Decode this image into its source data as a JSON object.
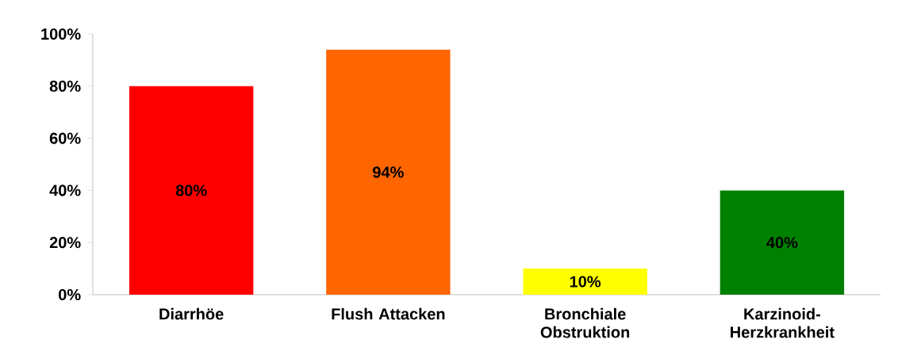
{
  "chart_data": {
    "type": "bar",
    "categories": [
      "Diarrhöe",
      "Flush Attacken",
      "Bronchiale Obstruktion",
      "Karzinoid-Herzkrankheit"
    ],
    "values": [
      80,
      94,
      10,
      40
    ],
    "colors": [
      "#ff0000",
      "#ff6600",
      "#ffff00",
      "#008000"
    ],
    "value_labels": [
      "80%",
      "94%",
      "10%",
      "40%"
    ],
    "ylim": [
      0,
      100
    ],
    "yticks": [
      {
        "value": 0,
        "label": "0%"
      },
      {
        "value": 20,
        "label": "20%"
      },
      {
        "value": 40,
        "label": "40%"
      },
      {
        "value": 60,
        "label": "60%"
      },
      {
        "value": 80,
        "label": "80%"
      },
      {
        "value": 100,
        "label": "100%"
      }
    ]
  }
}
